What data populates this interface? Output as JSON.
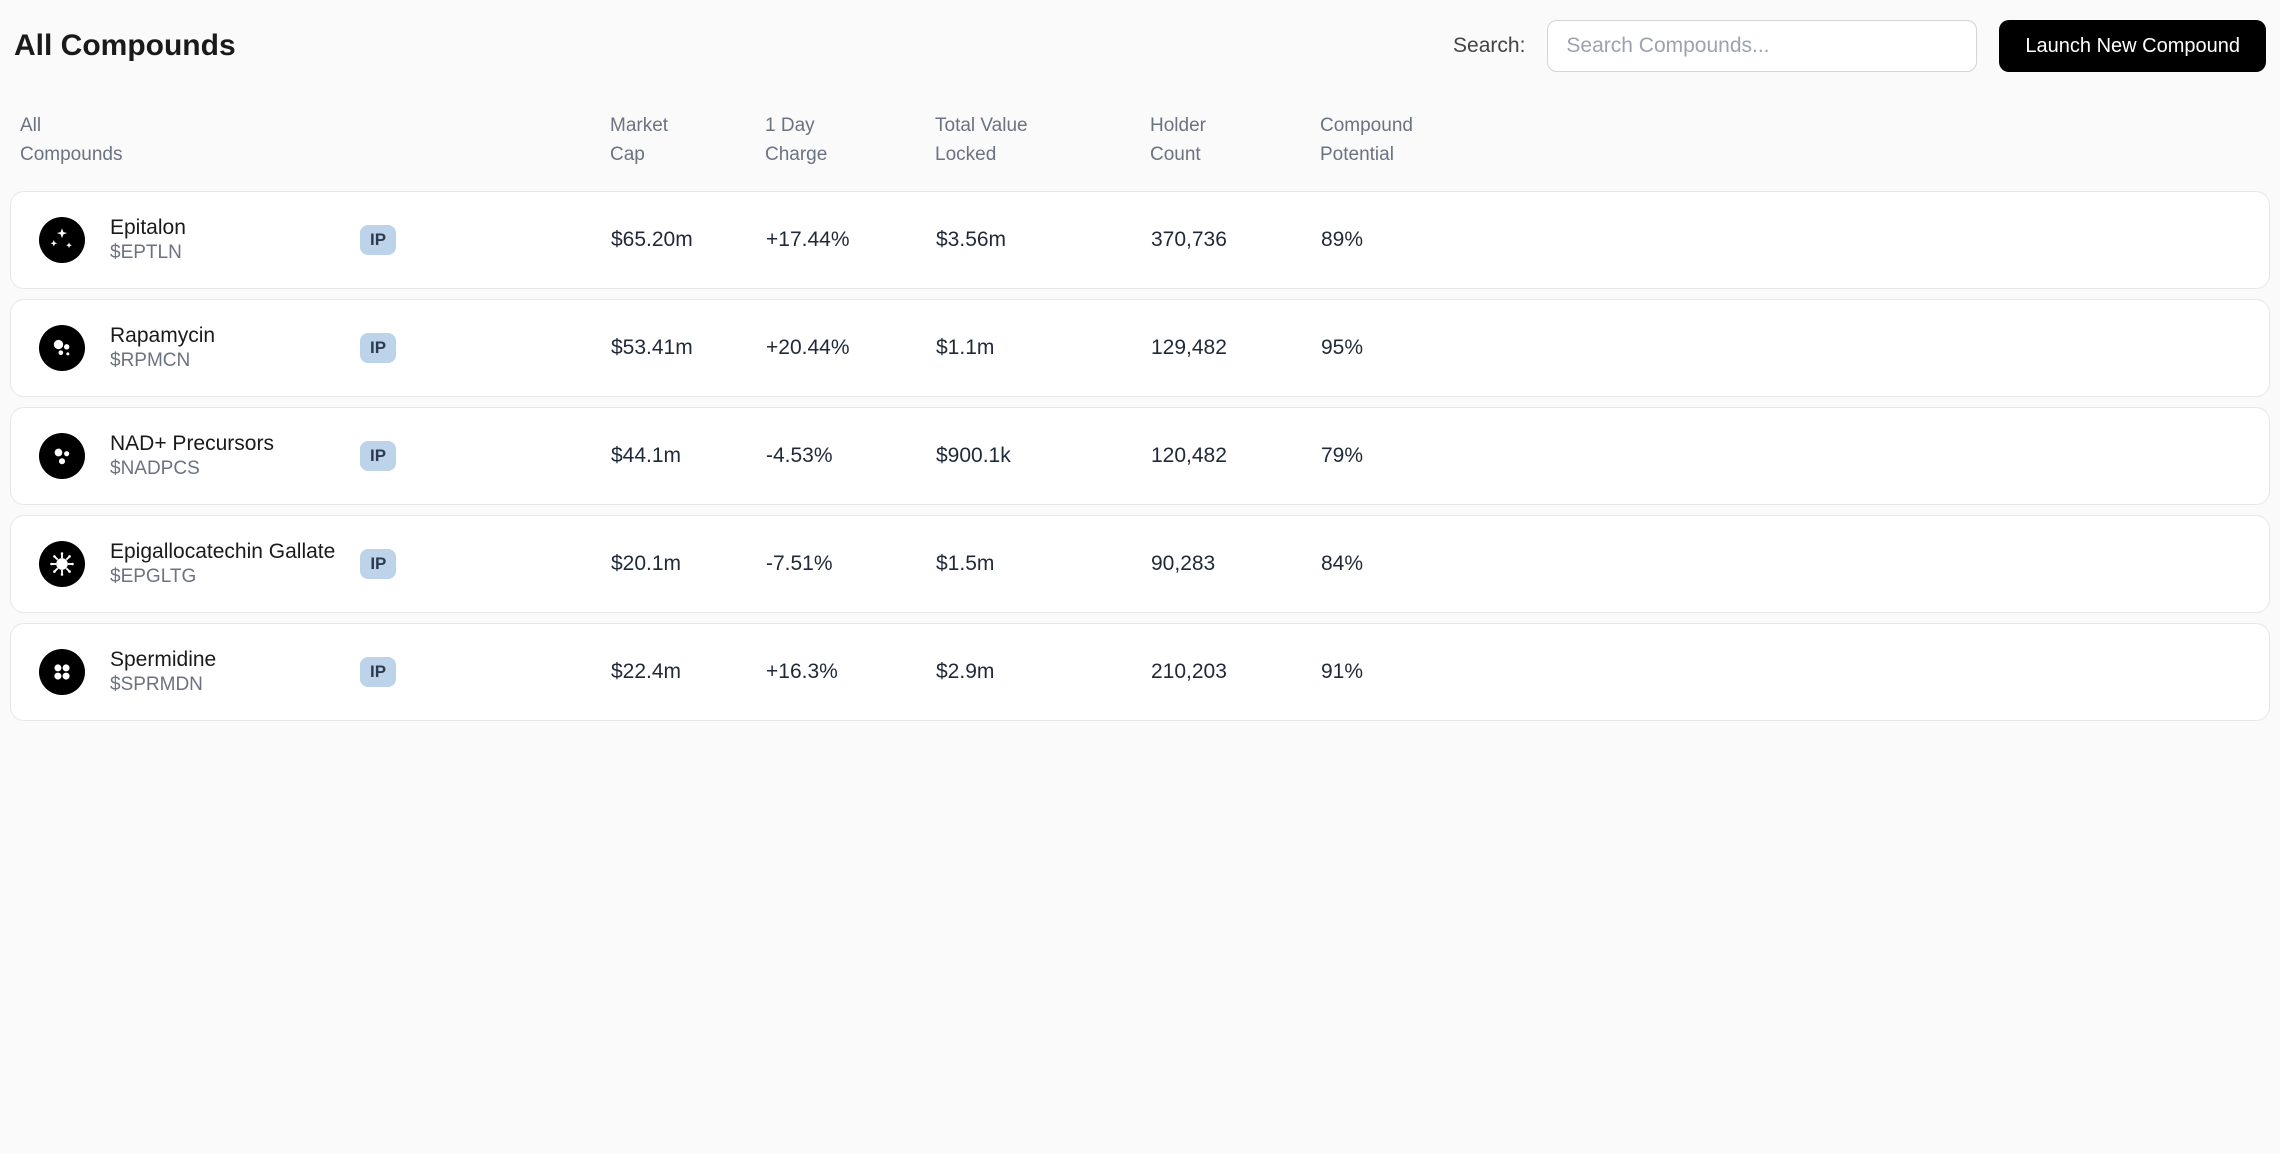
{
  "header": {
    "title": "All Compounds",
    "search_label": "Search:",
    "search_placeholder": "Search Compounds...",
    "launch_button": "Launch New Compound"
  },
  "columns": {
    "c0": "All\nCompounds",
    "c1": "Market\nCap",
    "c2": "1 Day\nCharge",
    "c3": "Total Value\nLocked",
    "c4": "Holder\nCount",
    "c5": "Compound\nPotential"
  },
  "badge_label": "IP",
  "rows": [
    {
      "name": "Epitalon",
      "ticker": "$EPTLN",
      "market_cap": "$65.20m",
      "day_change": "+17.44%",
      "tvl": "$3.56m",
      "holders": "370,736",
      "potential": "89%",
      "icon": "sparkle"
    },
    {
      "name": "Rapamycin",
      "ticker": "$RPMCN",
      "market_cap": "$53.41m",
      "day_change": "+20.44%",
      "tvl": "$1.1m",
      "holders": "129,482",
      "potential": "95%",
      "icon": "cluster"
    },
    {
      "name": "NAD+ Precursors",
      "ticker": "$NADPCS",
      "market_cap": "$44.1m",
      "day_change": "-4.53%",
      "tvl": "$900.1k",
      "holders": "120,482",
      "potential": "79%",
      "icon": "triad"
    },
    {
      "name": "Epigallocatechin Gallate",
      "ticker": "$EPGLTG",
      "market_cap": "$20.1m",
      "day_change": "-7.51%",
      "tvl": "$1.5m",
      "holders": "90,283",
      "potential": "84%",
      "icon": "virus"
    },
    {
      "name": "Spermidine",
      "ticker": "$SPRMDN",
      "market_cap": "$22.4m",
      "day_change": "+16.3%",
      "tvl": "$2.9m",
      "holders": "210,203",
      "potential": "91%",
      "icon": "quad"
    }
  ],
  "style": {
    "badge_bg": "#bcd3ea",
    "row_border": "#e5e7eb",
    "muted_text": "#6b7280"
  }
}
